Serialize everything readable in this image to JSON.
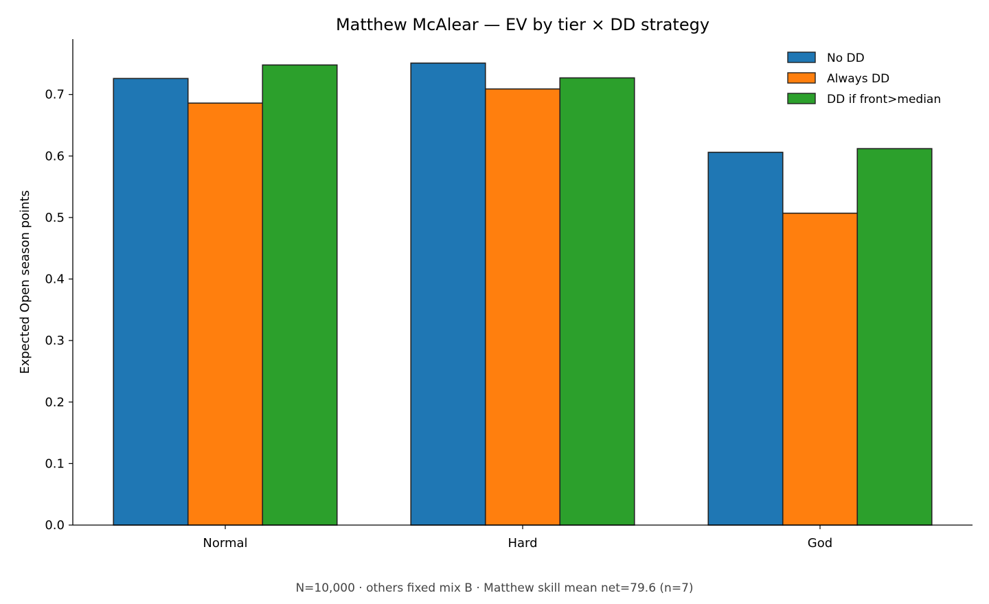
{
  "chart_data": {
    "type": "bar",
    "title": "Matthew McAlear — EV by tier × DD strategy",
    "xlabel": "",
    "ylabel": "Expected Open season points",
    "footnote": "N=10,000 · others fixed mix B · Matthew skill mean net=79.6 (n=7)",
    "categories": [
      "Normal",
      "Hard",
      "God"
    ],
    "series": [
      {
        "name": "No DD",
        "color": "#1f77b4",
        "values": [
          0.726,
          0.751,
          0.606
        ]
      },
      {
        "name": "Always DD",
        "color": "#ff7f0e",
        "values": [
          0.686,
          0.709,
          0.507
        ]
      },
      {
        "name": "DD if front>median",
        "color": "#2ca02c",
        "values": [
          0.748,
          0.727,
          0.612
        ]
      }
    ],
    "ylim": [
      0,
      0.79
    ],
    "yticks": [
      "0.0",
      "0.1",
      "0.2",
      "0.3",
      "0.4",
      "0.5",
      "0.6",
      "0.7"
    ],
    "legend_position": "top-right",
    "grid": false
  }
}
